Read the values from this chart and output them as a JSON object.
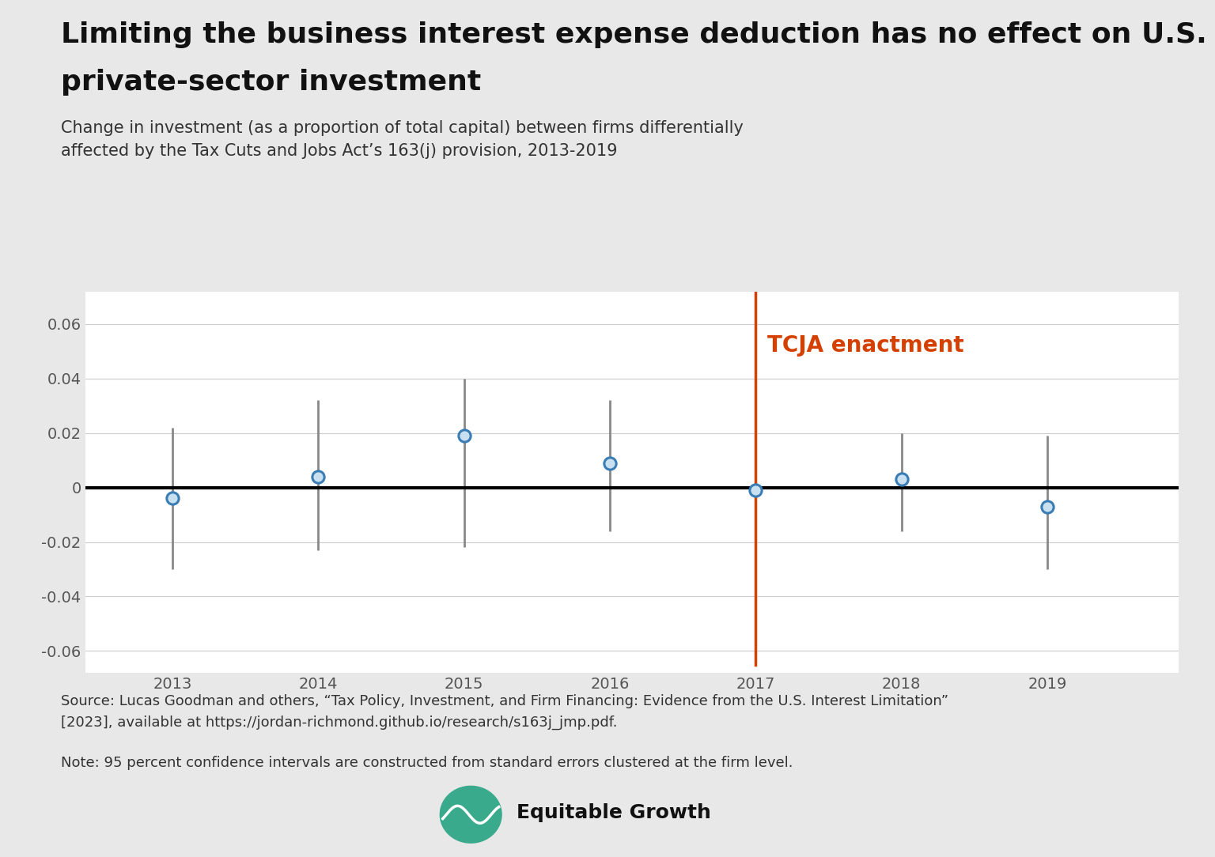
{
  "title_line1": "Limiting the business interest expense deduction has no effect on U.S.",
  "title_line2": "private-sector investment",
  "subtitle_line1": "Change in investment (as a proportion of total capital) between firms differentially",
  "subtitle_line2": "affected by the Tax Cuts and Jobs Act’s 163(j) provision, 2013-2019",
  "years": [
    2013,
    2014,
    2015,
    2016,
    2017,
    2018,
    2019
  ],
  "values": [
    -0.004,
    0.004,
    0.019,
    0.009,
    -0.001,
    0.003,
    -0.007
  ],
  "ci_lower": [
    -0.03,
    -0.023,
    -0.022,
    -0.016,
    -0.008,
    -0.016,
    -0.03
  ],
  "ci_upper": [
    0.022,
    0.032,
    0.04,
    0.032,
    0.007,
    0.02,
    0.019
  ],
  "tcja_year": 2017,
  "tcja_label": "TCJA enactment",
  "tcja_color": "#d44000",
  "point_facecolor": "#c8e0f0",
  "point_edgecolor": "#3a7db5",
  "ci_color": "#888888",
  "zero_line_color": "#000000",
  "ylim": [
    -0.068,
    0.072
  ],
  "yticks": [
    -0.06,
    -0.04,
    -0.02,
    0.0,
    0.02,
    0.04,
    0.06
  ],
  "background_color": "#e8e8e8",
  "plot_bg_color": "#ffffff",
  "source_text_line1": "Source: Lucas Goodman and others, “Tax Policy, Investment, and Firm Financing: Evidence from the U.S. Interest Limitation”",
  "source_text_line2": "[2023], available at https://jordan-richmond.github.io/research/s163j_jmp.pdf.",
  "note_text": "Note: 95 percent confidence intervals are constructed from standard errors clustered at the firm level.",
  "logo_text": "Equitable Growth",
  "title_fontsize": 26,
  "subtitle_fontsize": 15,
  "tick_fontsize": 14,
  "annotation_fontsize": 20,
  "footer_fontsize": 13,
  "logo_fontsize": 18
}
